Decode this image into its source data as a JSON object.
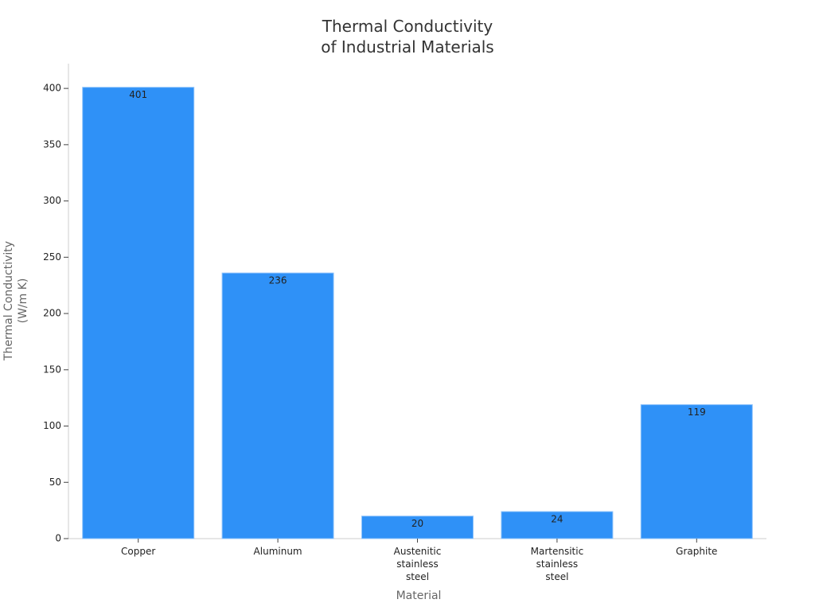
{
  "chart_data": {
    "type": "bar",
    "title": "Thermal Conductivity of Industrial Materials",
    "x_label": "Material",
    "y_label": "Thermal Conductivity (W/m K)",
    "categories": [
      "Copper",
      "Aluminum",
      "Austenitic stainless steel",
      "Martensitic stainless steel",
      "Graphite"
    ],
    "values": [
      401,
      236,
      20,
      24,
      119
    ],
    "color": "#2f91f7",
    "ylim": [
      0,
      422
    ],
    "yticks": [
      0,
      50,
      100,
      150,
      200,
      250,
      300,
      350,
      400
    ],
    "grid": false
  }
}
